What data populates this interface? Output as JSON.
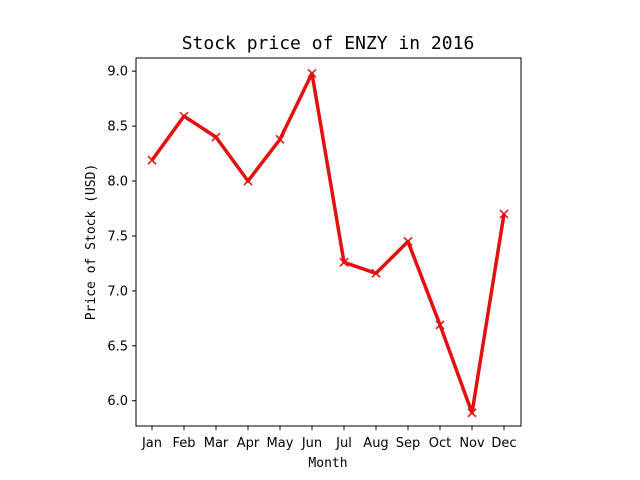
{
  "chart_data": {
    "type": "line",
    "title": "Stock price of ENZY in 2016",
    "xlabel": "Month",
    "ylabel": "Price of Stock (USD)",
    "categories": [
      "Jan",
      "Feb",
      "Mar",
      "Apr",
      "May",
      "Jun",
      "Jul",
      "Aug",
      "Sep",
      "Oct",
      "Nov",
      "Dec"
    ],
    "series": [
      {
        "values": [
          8.19,
          8.59,
          8.4,
          8.0,
          8.38,
          8.98,
          7.26,
          7.16,
          7.45,
          6.69,
          5.89,
          7.7
        ],
        "color": "#e41010",
        "marker": "x"
      }
    ],
    "ylim": [
      5.77,
      9.12
    ],
    "yticks": [
      "6.0",
      "6.5",
      "7.0",
      "7.5",
      "8.0",
      "8.5",
      "9.0"
    ],
    "grid": false,
    "legend": "none"
  }
}
